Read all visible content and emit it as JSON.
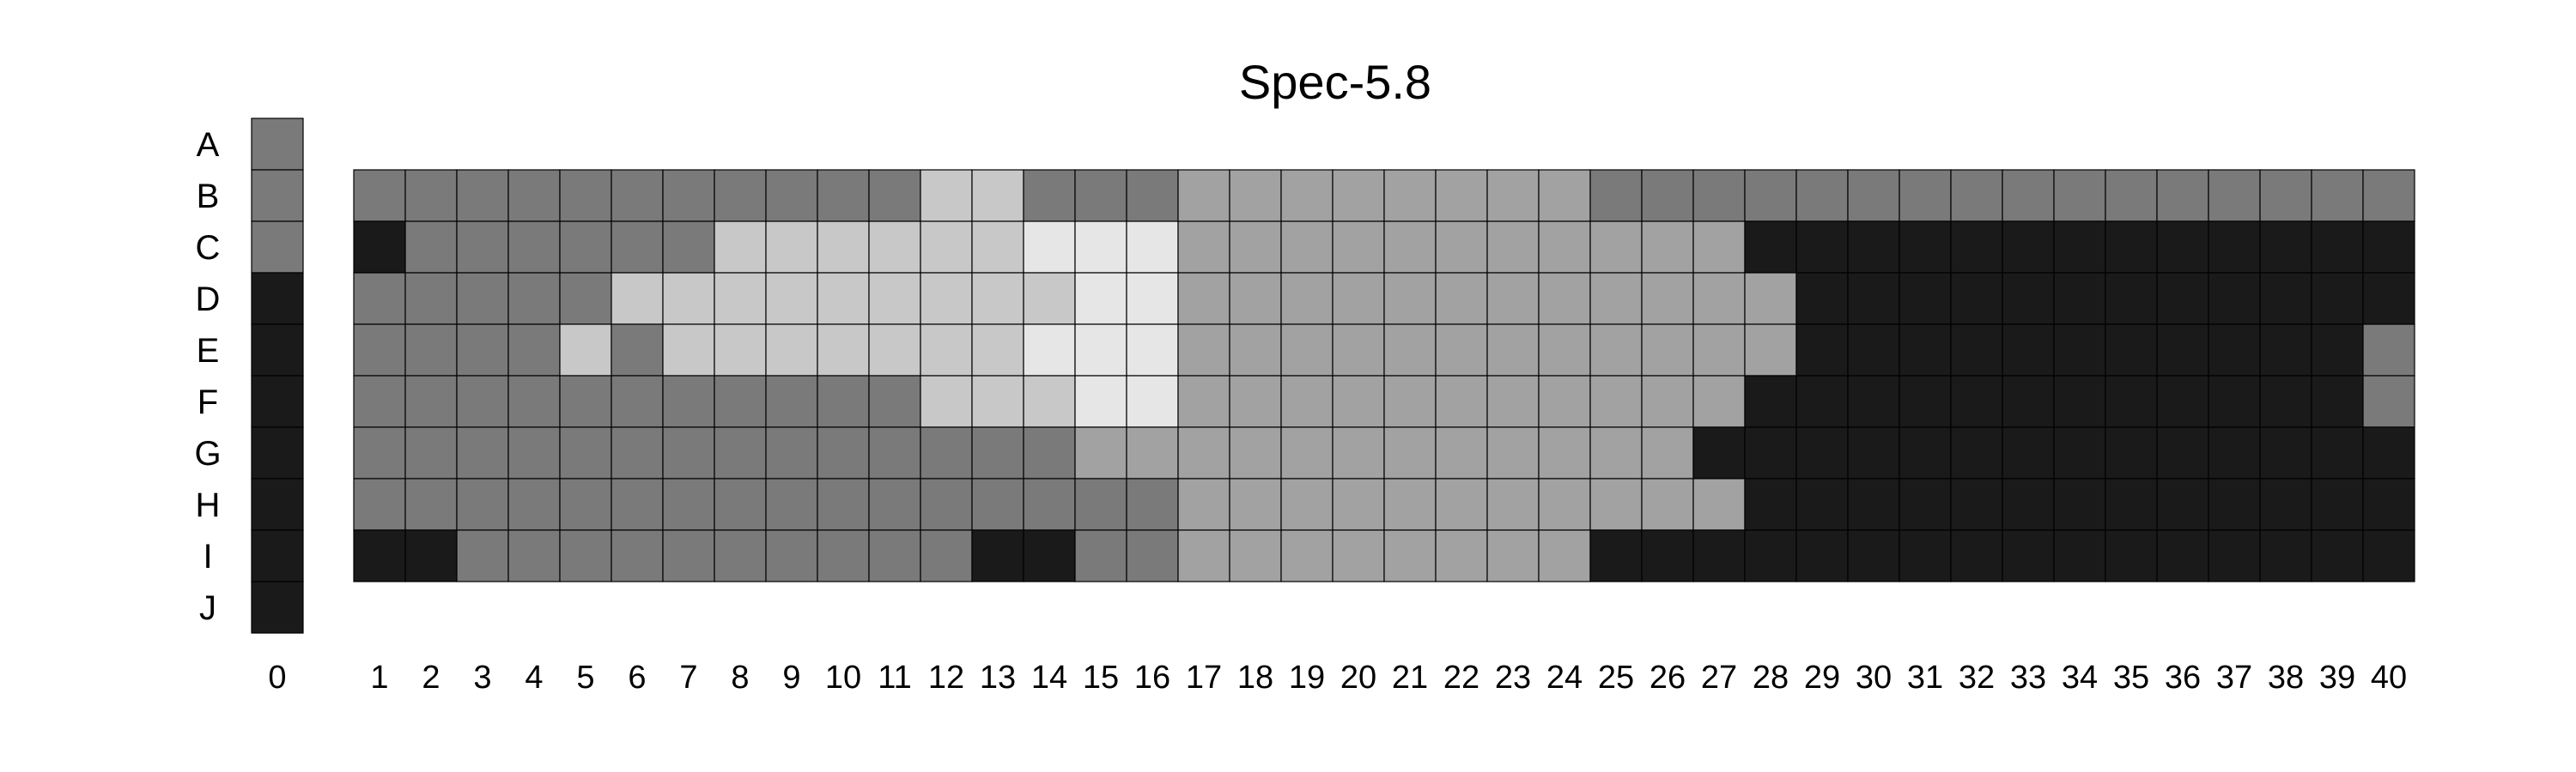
{
  "chart_data": {
    "type": "heatmap",
    "title": "Spec-5.8",
    "xlabel": "",
    "ylabel": "",
    "row_labels": [
      "A",
      "B",
      "C",
      "D",
      "E",
      "F",
      "G",
      "H",
      "I",
      "J"
    ],
    "x_labels": [
      "0",
      "1",
      "2",
      "3",
      "4",
      "5",
      "6",
      "7",
      "8",
      "9",
      "10",
      "11",
      "12",
      "13",
      "14",
      "15",
      "16",
      "17",
      "18",
      "19",
      "20",
      "21",
      "22",
      "23",
      "24",
      "25",
      "26",
      "27",
      "28",
      "29",
      "30",
      "31",
      "32",
      "33",
      "34",
      "35",
      "36",
      "37",
      "38",
      "39",
      "40"
    ],
    "grid": true,
    "legend": "none",
    "value_scale": {
      "0": "#1a1a1a",
      "1": "#7a7a7a",
      "2": "#a2a2a2",
      "3": "#c8c8c8",
      "4": "#e6e6e6"
    },
    "column_0": {
      "rows": [
        "A",
        "B",
        "C",
        "D",
        "E",
        "F",
        "G",
        "H",
        "I",
        "J"
      ],
      "values": [
        1,
        1,
        1,
        0,
        0,
        0,
        0,
        0,
        0,
        0
      ]
    },
    "main_grid": {
      "rows": [
        "B",
        "C",
        "D",
        "E",
        "F",
        "G",
        "H",
        "I"
      ],
      "columns": [
        1,
        2,
        3,
        4,
        5,
        6,
        7,
        8,
        9,
        10,
        11,
        12,
        13,
        14,
        15,
        16,
        17,
        18,
        19,
        20,
        21,
        22,
        23,
        24,
        25,
        26,
        27,
        28,
        29,
        30,
        31,
        32,
        33,
        34,
        35,
        36,
        37,
        38,
        39,
        40
      ],
      "values": [
        [
          1,
          1,
          1,
          1,
          1,
          1,
          1,
          1,
          1,
          1,
          1,
          3,
          3,
          1,
          1,
          1,
          2,
          2,
          2,
          2,
          2,
          2,
          2,
          2,
          1,
          1,
          1,
          1,
          1,
          1,
          1,
          1,
          1,
          1,
          1,
          1,
          1,
          1,
          1,
          1
        ],
        [
          0,
          1,
          1,
          1,
          1,
          1,
          1,
          3,
          3,
          3,
          3,
          3,
          3,
          4,
          4,
          4,
          2,
          2,
          2,
          2,
          2,
          2,
          2,
          2,
          2,
          2,
          2,
          0,
          0,
          0,
          0,
          0,
          0,
          0,
          0,
          0,
          0,
          0,
          0,
          0
        ],
        [
          1,
          1,
          1,
          1,
          1,
          3,
          3,
          3,
          3,
          3,
          3,
          3,
          3,
          3,
          4,
          4,
          2,
          2,
          2,
          2,
          2,
          2,
          2,
          2,
          2,
          2,
          2,
          2,
          0,
          0,
          0,
          0,
          0,
          0,
          0,
          0,
          0,
          0,
          0,
          0
        ],
        [
          1,
          1,
          1,
          1,
          3,
          1,
          3,
          3,
          3,
          3,
          3,
          3,
          3,
          4,
          4,
          4,
          2,
          2,
          2,
          2,
          2,
          2,
          2,
          2,
          2,
          2,
          2,
          2,
          0,
          0,
          0,
          0,
          0,
          0,
          0,
          0,
          0,
          0,
          0,
          1
        ],
        [
          1,
          1,
          1,
          1,
          1,
          1,
          1,
          1,
          1,
          1,
          1,
          3,
          3,
          3,
          4,
          4,
          2,
          2,
          2,
          2,
          2,
          2,
          2,
          2,
          2,
          2,
          2,
          0,
          0,
          0,
          0,
          0,
          0,
          0,
          0,
          0,
          0,
          0,
          0,
          1
        ],
        [
          1,
          1,
          1,
          1,
          1,
          1,
          1,
          1,
          1,
          1,
          1,
          1,
          1,
          1,
          2,
          2,
          2,
          2,
          2,
          2,
          2,
          2,
          2,
          2,
          2,
          2,
          0,
          0,
          0,
          0,
          0,
          0,
          0,
          0,
          0,
          0,
          0,
          0,
          0,
          0
        ],
        [
          1,
          1,
          1,
          1,
          1,
          1,
          1,
          1,
          1,
          1,
          1,
          1,
          1,
          1,
          1,
          1,
          2,
          2,
          2,
          2,
          2,
          2,
          2,
          2,
          2,
          2,
          2,
          0,
          0,
          0,
          0,
          0,
          0,
          0,
          0,
          0,
          0,
          0,
          0,
          0
        ],
        [
          0,
          0,
          1,
          1,
          1,
          1,
          1,
          1,
          1,
          1,
          1,
          1,
          0,
          0,
          1,
          1,
          2,
          2,
          2,
          2,
          2,
          2,
          2,
          2,
          0,
          0,
          0,
          0,
          0,
          0,
          0,
          0,
          0,
          0,
          0,
          0,
          0,
          0,
          0,
          0
        ]
      ]
    }
  }
}
